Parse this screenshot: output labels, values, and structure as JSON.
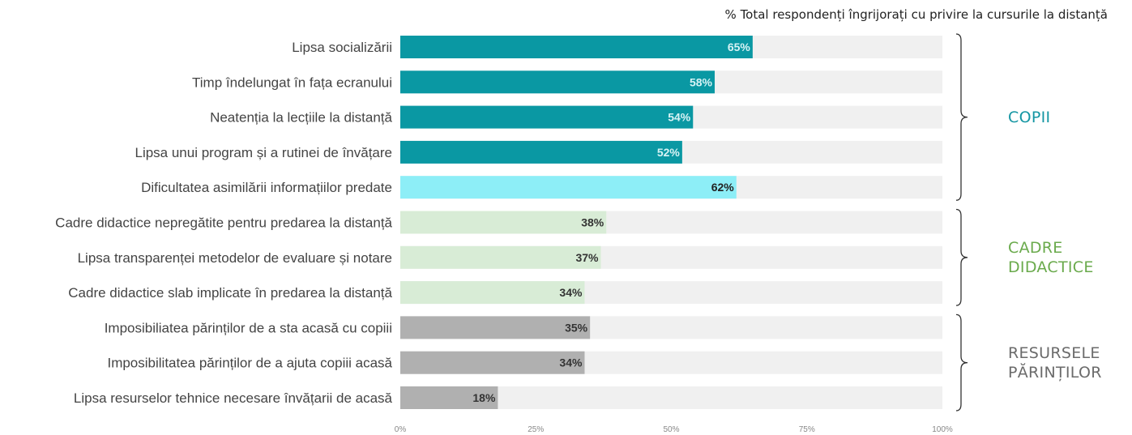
{
  "chart_data": {
    "type": "bar",
    "orientation": "horizontal",
    "title": "% Total respondenți îngrijorați cu privire la cursurile la distanță",
    "categories": [
      "Lipsa socializării",
      "Timp îndelungat în fața ecranului",
      "Neatenția la lecțiile la distanță",
      "Lipsa unui program și a rutinei de învățare",
      "Dificultatea asimilării informațiilor predate",
      "Cadre didactice nepregătite pentru predarea la distanță",
      "Lipsa transparenței metodelor de evaluare și notare",
      "Cadre didactice slab implicate în predarea la distanță",
      "Imposibiliatea părinților de a sta acasă cu copiii",
      "Imposibilitatea părinților de a ajuta copiii acasă",
      "Lipsa resurselor tehnice necesare învățarii de acasă"
    ],
    "values": [
      65,
      58,
      54,
      52,
      62,
      38,
      37,
      34,
      35,
      34,
      18
    ],
    "value_labels": [
      "65%",
      "58%",
      "54%",
      "52%",
      "62%",
      "38%",
      "37%",
      "34%",
      "35%",
      "34%",
      "18%"
    ],
    "bar_colors": [
      "#0a98a3",
      "#0a98a3",
      "#0a98a3",
      "#0a98a3",
      "#8deef7",
      "#d8ecd6",
      "#d8ecd6",
      "#d8ecd6",
      "#b0b0b0",
      "#b0b0b0",
      "#b0b0b0"
    ],
    "value_label_colors": [
      "#d8f3f5",
      "#d8f3f5",
      "#d8f3f5",
      "#d8f3f5",
      "#222222",
      "#333333",
      "#333333",
      "#333333",
      "#333333",
      "#333333",
      "#333333"
    ],
    "track_color": "#f0f0f0",
    "xlim": [
      0,
      100
    ],
    "x_ticks": [
      0,
      25,
      50,
      75,
      100
    ],
    "x_tick_labels": [
      "0%",
      "25%",
      "50%",
      "75%",
      "100%"
    ],
    "grid": false,
    "groups": [
      {
        "label_lines": [
          "COPII"
        ],
        "color": "#1596a3",
        "from": 0,
        "to": 4
      },
      {
        "label_lines": [
          "CADRE",
          "DIDACTICE"
        ],
        "color": "#6aaa4c",
        "from": 5,
        "to": 7
      },
      {
        "label_lines": [
          "RESURSELE",
          "PĂRINȚILOR"
        ],
        "color": "#6b6b6b",
        "from": 8,
        "to": 10
      }
    ]
  }
}
